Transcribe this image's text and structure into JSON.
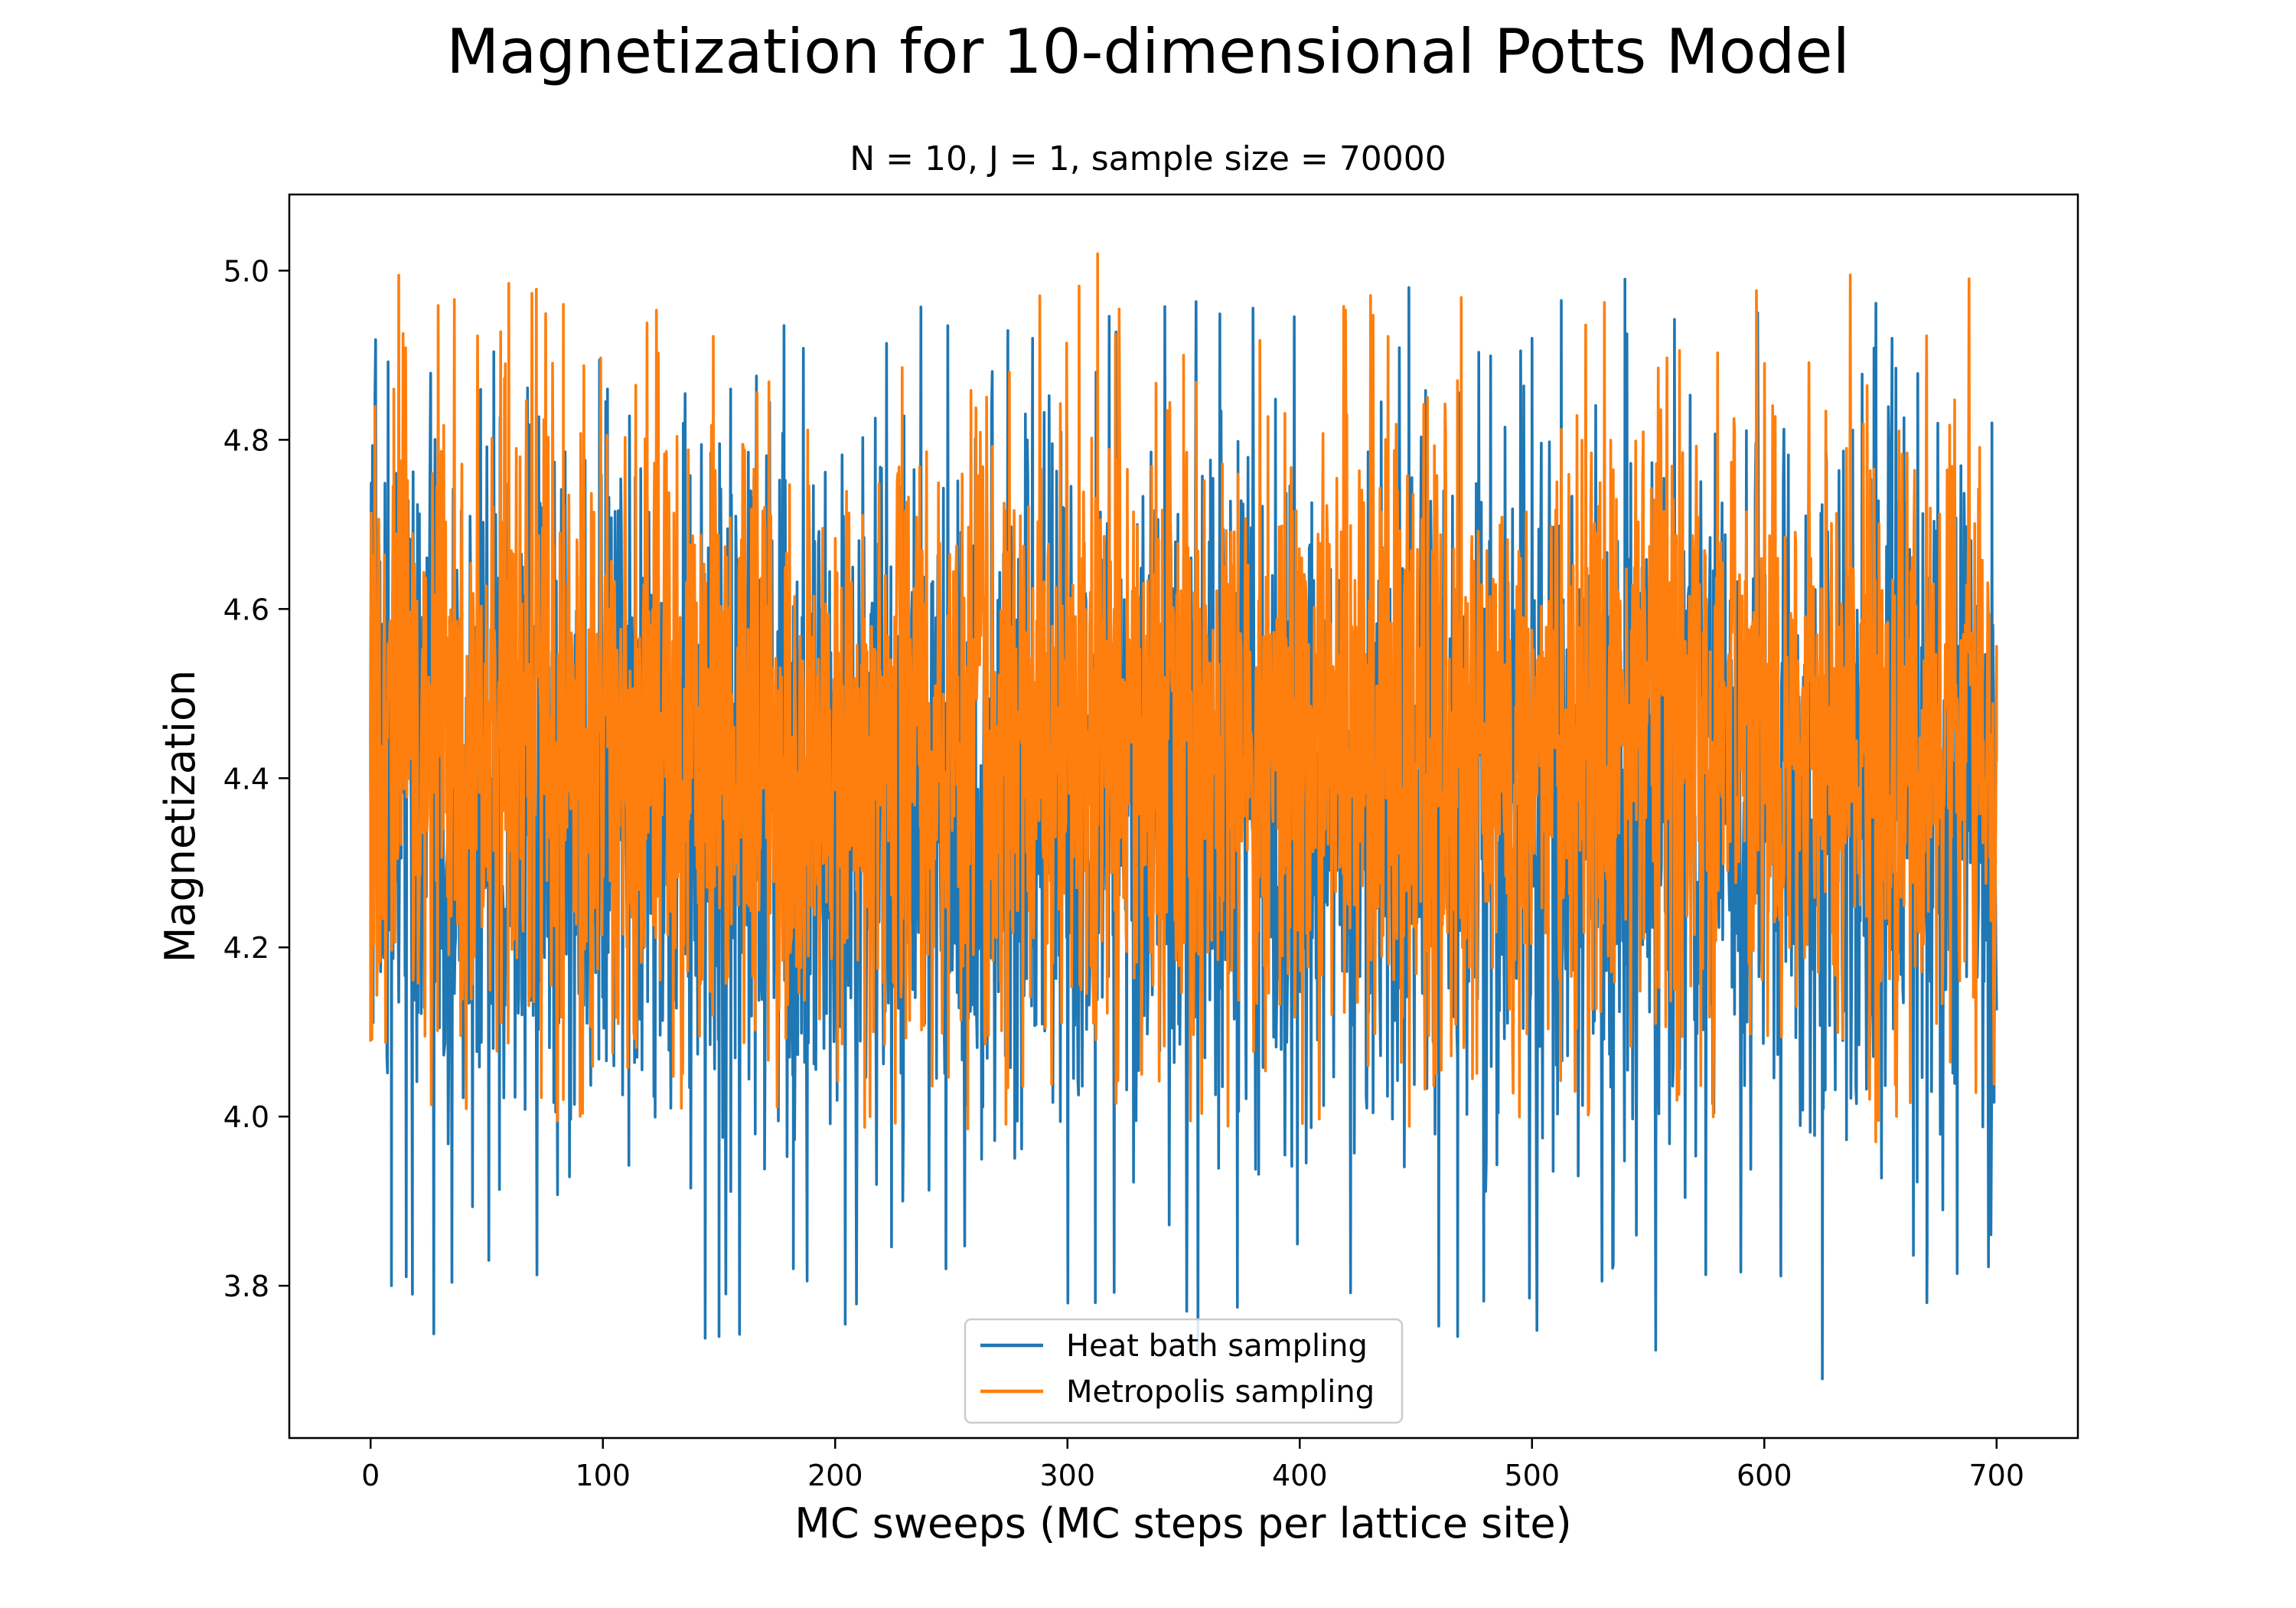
{
  "chart_data": {
    "type": "line",
    "title": "Magnetization for 10-dimensional Potts Model",
    "subtitle": "N = 10, J = 1, sample size = 70000",
    "xlabel": "MC sweeps (MC steps per lattice site)",
    "ylabel": "Magnetization",
    "xlim": [
      -35,
      735
    ],
    "ylim": [
      3.62,
      5.09
    ],
    "xticks": [
      0,
      100,
      200,
      300,
      400,
      500,
      600,
      700
    ],
    "xtick_labels": [
      "0",
      "100",
      "200",
      "300",
      "400",
      "500",
      "600",
      "700"
    ],
    "yticks": [
      3.8,
      4.0,
      4.2,
      4.4,
      4.6,
      4.8,
      5.0
    ],
    "ytick_labels": [
      "3.8",
      "4.0",
      "4.2",
      "4.4",
      "4.6",
      "4.8",
      "5.0"
    ],
    "grid": false,
    "legend_position": "lower-center",
    "series": [
      {
        "name": "Heat bath sampling",
        "color": "#1f77b4",
        "x_range": [
          0,
          700
        ],
        "n_points": 70000,
        "y_typical_range": [
          4.0,
          4.75
        ],
        "y_min": 3.69,
        "y_max": 4.99,
        "extremes": [
          {
            "x": 0,
            "y": 4.46
          },
          {
            "x": 9,
            "y": 3.8
          },
          {
            "x": 18,
            "y": 3.79
          },
          {
            "x": 35,
            "y": 3.82
          },
          {
            "x": 102,
            "y": 4.86
          },
          {
            "x": 150,
            "y": 3.74
          },
          {
            "x": 155,
            "y": 4.86
          },
          {
            "x": 182,
            "y": 3.82
          },
          {
            "x": 285,
            "y": 4.92
          },
          {
            "x": 312,
            "y": 3.78
          },
          {
            "x": 447,
            "y": 4.98
          },
          {
            "x": 468,
            "y": 3.74
          },
          {
            "x": 500,
            "y": 4.92
          },
          {
            "x": 540,
            "y": 4.99
          },
          {
            "x": 625,
            "y": 3.69
          },
          {
            "x": 655,
            "y": 4.92
          },
          {
            "x": 670,
            "y": 3.78
          },
          {
            "x": 698,
            "y": 4.82
          }
        ]
      },
      {
        "name": "Metropolis sampling",
        "color": "#ff7f0e",
        "x_range": [
          0,
          700
        ],
        "n_points": 70000,
        "y_typical_range": [
          4.12,
          4.78
        ],
        "y_min": 3.97,
        "y_max": 5.02,
        "extremes": [
          {
            "x": 0,
            "y": 4.09
          },
          {
            "x": 10,
            "y": 4.86
          },
          {
            "x": 83,
            "y": 4.96
          },
          {
            "x": 83,
            "y": 4.02
          },
          {
            "x": 58,
            "y": 4.89
          },
          {
            "x": 215,
            "y": 4.0
          },
          {
            "x": 275,
            "y": 4.88
          },
          {
            "x": 313,
            "y": 5.02
          },
          {
            "x": 350,
            "y": 4.9
          },
          {
            "x": 455,
            "y": 4.85
          },
          {
            "x": 648,
            "y": 3.97
          },
          {
            "x": 688,
            "y": 4.86
          },
          {
            "x": 700,
            "y": 4.42
          }
        ]
      }
    ]
  }
}
